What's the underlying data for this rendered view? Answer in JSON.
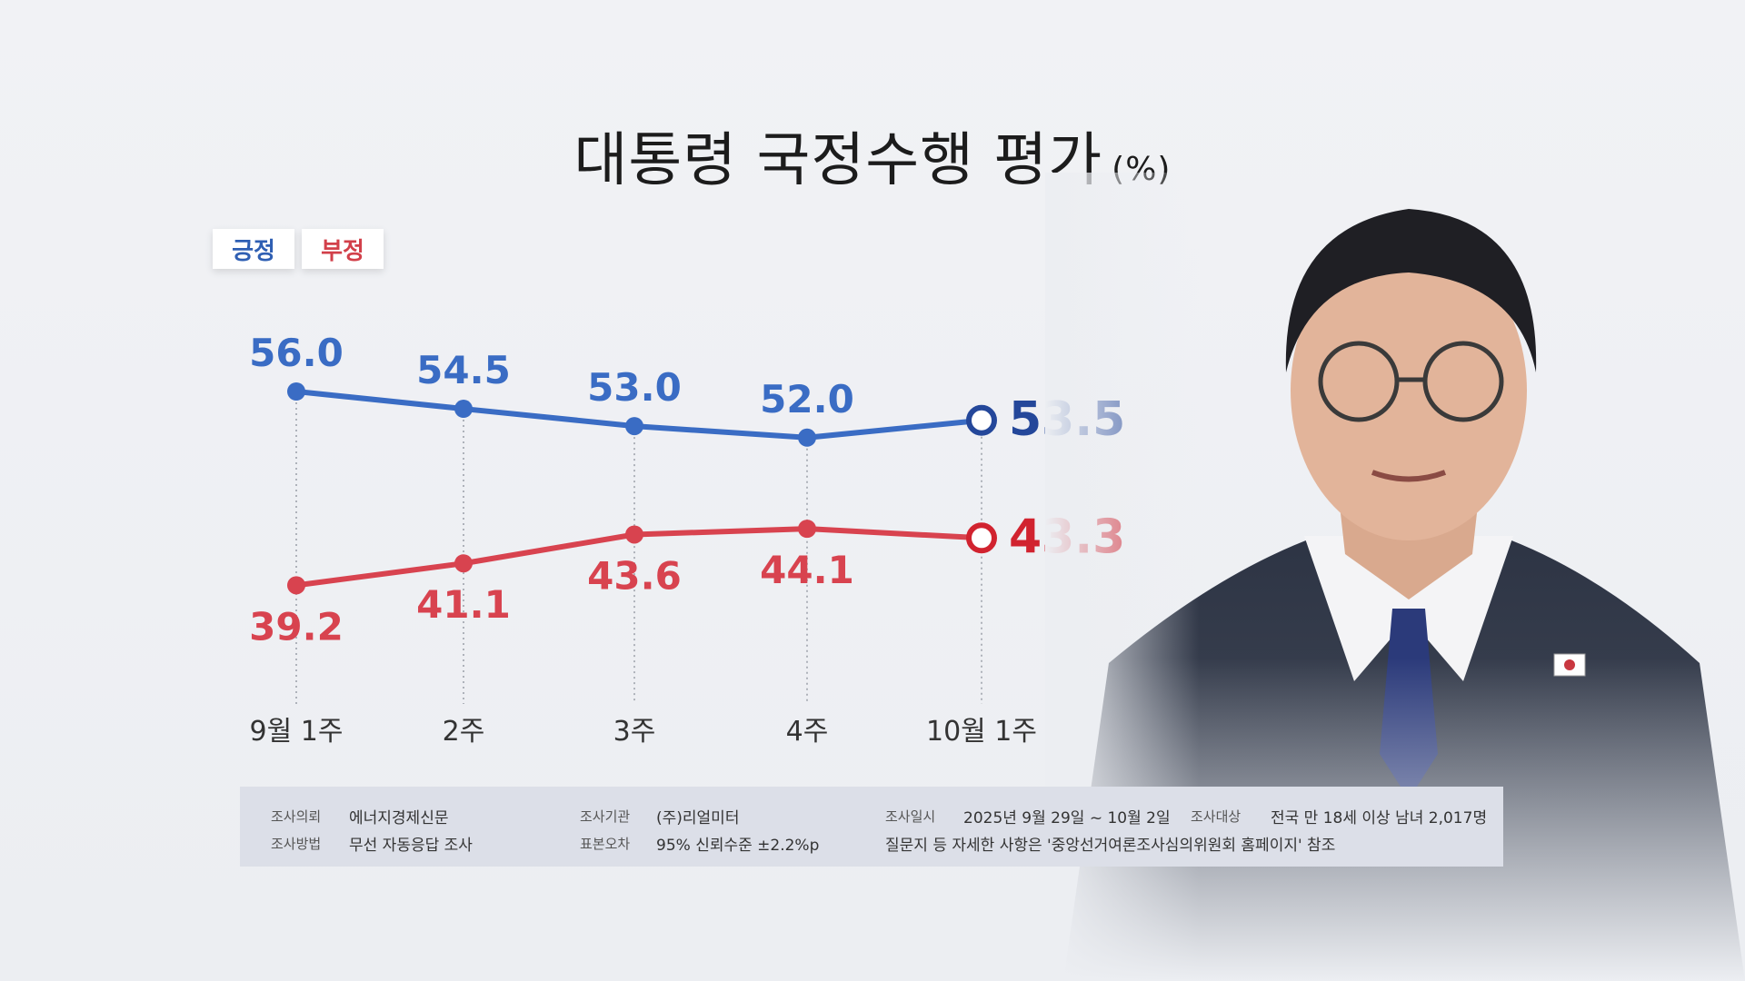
{
  "title": "대통령 국정수행 평가",
  "title_unit": "(%)",
  "legend": {
    "positive": "긍정",
    "negative": "부정"
  },
  "colors": {
    "positive": "#3a6cc4",
    "negative": "#d8434f",
    "positive_last": "#24479a",
    "negative_last": "#d1232f"
  },
  "chart_data": {
    "type": "line",
    "title": "대통령 국정수행 평가",
    "x": [
      "9월 1주",
      "2주",
      "3주",
      "4주",
      "10월 1주"
    ],
    "series": [
      {
        "name": "긍정",
        "values": [
          56.0,
          54.5,
          53.0,
          52.0,
          53.5
        ],
        "labels": [
          "56.0",
          "54.5",
          "53.0",
          "52.0",
          "53.5"
        ]
      },
      {
        "name": "부정",
        "values": [
          39.2,
          41.1,
          43.6,
          44.1,
          43.3
        ],
        "labels": [
          "39.2",
          "41.1",
          "43.6",
          "44.1",
          "43.3"
        ]
      }
    ],
    "ylabel": "%",
    "legend_position": "top-left",
    "grid": false
  },
  "survey": {
    "client_label": "조사의뢰",
    "client": "에너지경제신문",
    "method_label": "조사방법",
    "method": "무선 자동응답 조사",
    "agency_label": "조사기관",
    "agency": "(주)리얼미터",
    "error_label": "표본오차",
    "error": "95% 신뢰수준 ±2.2%p",
    "date_label": "조사일시",
    "date": "2025년 9월 29일 ~ 10월 2일",
    "target_label": "조사대상",
    "target": "전국 만 18세 이상 남녀 2,017명",
    "note": "질문지 등 자세한 사항은 '중앙선거여론조사심의위원회 홈페이지' 참조"
  }
}
